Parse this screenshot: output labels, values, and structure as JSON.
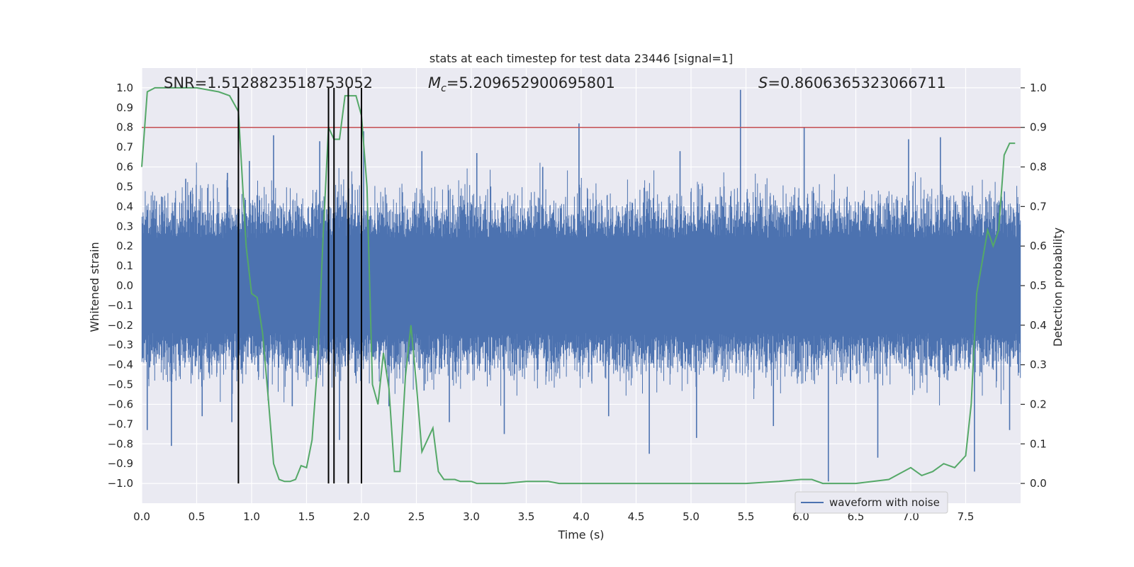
{
  "chart_data": {
    "type": "line",
    "title": "stats at each timestep for test data 23446 [signal=1]",
    "xlabel": "Time (s)",
    "ylabel_left": "Whitened strain",
    "ylabel_right": "Detection probability",
    "xlim": [
      0.0,
      8.0
    ],
    "ylim_left": [
      -1.1,
      1.1
    ],
    "ylim_right": [
      -0.05,
      1.05
    ],
    "x_ticks": [
      "0.0",
      "0.5",
      "1.0",
      "1.5",
      "2.0",
      "2.5",
      "3.0",
      "3.5",
      "4.0",
      "4.5",
      "5.0",
      "5.5",
      "6.0",
      "6.5",
      "7.0",
      "7.5"
    ],
    "y_left_ticks": [
      "1.0",
      "0.9",
      "0.8",
      "0.7",
      "0.6",
      "0.5",
      "0.4",
      "0.3",
      "0.2",
      "0.1",
      "0.0",
      "−0.1",
      "−0.2",
      "−0.3",
      "−0.4",
      "−0.5",
      "−0.6",
      "−0.7",
      "−0.8",
      "−0.9",
      "−1.0"
    ],
    "y_right_ticks": [
      "1.0",
      "0.9",
      "0.8",
      "0.7",
      "0.6",
      "0.5",
      "0.4",
      "0.3",
      "0.2",
      "0.1",
      "0.0"
    ],
    "grid": true,
    "annotations": {
      "snr": "SNR=1.5128823518753052",
      "mc_symbol": "M",
      "mc_sub": "c",
      "mc_value": "=5.209652900695801",
      "s_symbol": "S",
      "s_value": "=0.8606365323066711"
    },
    "legend": {
      "label": "waveform with noise",
      "position": "lower-right"
    },
    "threshold_line": {
      "y_right": 0.9,
      "color": "#c44e52"
    },
    "vertical_lines_x": [
      0.88,
      1.7,
      1.75,
      1.88,
      2.0
    ],
    "series": [
      {
        "name": "waveform with noise",
        "axis": "left",
        "color": "#4c72b0",
        "spikes": [
          [
            0.05,
            -0.73
          ],
          [
            0.18,
            0.45
          ],
          [
            0.27,
            -0.81
          ],
          [
            0.4,
            0.54
          ],
          [
            0.55,
            -0.66
          ],
          [
            0.78,
            0.57
          ],
          [
            0.82,
            -0.69
          ],
          [
            0.98,
            0.63
          ],
          [
            1.15,
            -0.58
          ],
          [
            1.2,
            0.76
          ],
          [
            1.37,
            -0.61
          ],
          [
            1.62,
            0.73
          ],
          [
            1.8,
            -0.78
          ],
          [
            2.02,
            0.78
          ],
          [
            2.25,
            -0.61
          ],
          [
            2.55,
            0.68
          ],
          [
            2.8,
            -0.69
          ],
          [
            3.05,
            0.67
          ],
          [
            3.3,
            -0.75
          ],
          [
            3.65,
            0.6
          ],
          [
            3.98,
            0.82
          ],
          [
            4.25,
            -0.66
          ],
          [
            4.62,
            -0.85
          ],
          [
            4.9,
            0.68
          ],
          [
            5.05,
            -0.77
          ],
          [
            5.45,
            0.99
          ],
          [
            5.75,
            -0.71
          ],
          [
            6.03,
            0.8
          ],
          [
            6.25,
            -0.99
          ],
          [
            6.7,
            -0.87
          ],
          [
            6.98,
            0.74
          ],
          [
            7.27,
            0.75
          ],
          [
            7.58,
            -0.94
          ],
          [
            7.9,
            -0.73
          ]
        ]
      },
      {
        "name": "detection probability",
        "axis": "right",
        "color": "#55a868",
        "x": [
          0.0,
          0.05,
          0.12,
          0.3,
          0.5,
          0.7,
          0.8,
          0.88,
          0.95,
          1.0,
          1.05,
          1.1,
          1.15,
          1.2,
          1.25,
          1.3,
          1.35,
          1.4,
          1.45,
          1.5,
          1.55,
          1.6,
          1.65,
          1.7,
          1.75,
          1.8,
          1.85,
          1.9,
          1.95,
          2.0,
          2.05,
          2.1,
          2.15,
          2.2,
          2.25,
          2.3,
          2.35,
          2.4,
          2.45,
          2.5,
          2.55,
          2.6,
          2.65,
          2.7,
          2.75,
          2.8,
          2.85,
          2.9,
          2.95,
          3.0,
          3.05,
          3.1,
          3.2,
          3.3,
          3.5,
          3.7,
          3.8,
          4.0,
          4.2,
          4.5,
          5.0,
          5.5,
          5.8,
          6.0,
          6.1,
          6.2,
          6.3,
          6.5,
          6.8,
          6.9,
          7.0,
          7.1,
          7.2,
          7.3,
          7.4,
          7.5,
          7.55,
          7.6,
          7.65,
          7.7,
          7.75,
          7.8,
          7.85,
          7.9,
          7.95
        ],
        "y": [
          0.8,
          0.99,
          1.0,
          1.0,
          1.0,
          0.99,
          0.98,
          0.94,
          0.6,
          0.48,
          0.47,
          0.38,
          0.22,
          0.05,
          0.01,
          0.005,
          0.005,
          0.01,
          0.045,
          0.04,
          0.11,
          0.3,
          0.62,
          0.9,
          0.87,
          0.87,
          0.98,
          0.98,
          0.98,
          0.93,
          0.75,
          0.25,
          0.2,
          0.33,
          0.24,
          0.03,
          0.03,
          0.27,
          0.4,
          0.25,
          0.08,
          0.11,
          0.14,
          0.03,
          0.01,
          0.01,
          0.01,
          0.005,
          0.005,
          0.005,
          0.0,
          0.0,
          0.0,
          0.0,
          0.005,
          0.005,
          0.0,
          0.0,
          0.0,
          0.0,
          0.0,
          0.0,
          0.005,
          0.01,
          0.01,
          0.0,
          0.0,
          0.0,
          0.01,
          0.025,
          0.04,
          0.02,
          0.03,
          0.05,
          0.04,
          0.07,
          0.2,
          0.48,
          0.56,
          0.64,
          0.6,
          0.64,
          0.83,
          0.86,
          0.86
        ]
      }
    ]
  }
}
